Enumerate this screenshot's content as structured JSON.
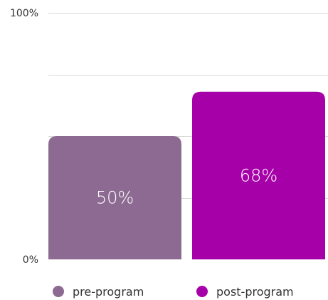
{
  "chart_data": {
    "type": "bar",
    "categories": [
      "pre-program",
      "post-program"
    ],
    "values": [
      50,
      68
    ],
    "value_labels": [
      "50%",
      "68%"
    ],
    "colors": [
      "#8d6a91",
      "#a601a8"
    ],
    "ylim": [
      0,
      100
    ],
    "y_ticks": [
      {
        "value": 100,
        "label": "100%"
      },
      {
        "value": 0,
        "label": "0%"
      }
    ],
    "gridlines_at": [
      100,
      75,
      50,
      25
    ],
    "grid": true,
    "legend": {
      "placement": "bottom",
      "entries": [
        {
          "label": "pre-program",
          "color": "#8d6a91"
        },
        {
          "label": "post-program",
          "color": "#a601a8"
        }
      ]
    }
  }
}
